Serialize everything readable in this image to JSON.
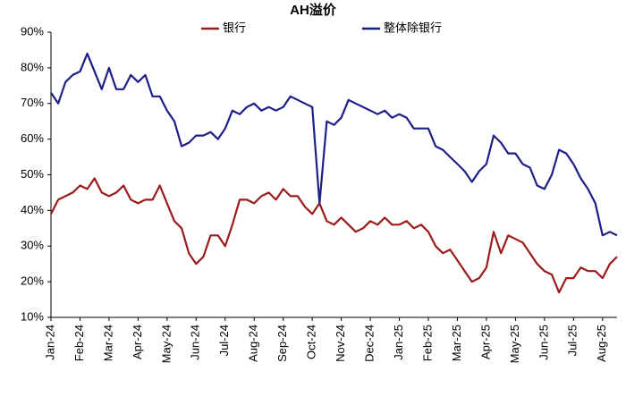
{
  "chart_data": {
    "type": "line",
    "title": "AH溢价",
    "categories": [
      "Jan-24",
      null,
      null,
      null,
      "Feb-24",
      null,
      null,
      null,
      "Mar-24",
      null,
      null,
      null,
      "Apr-24",
      null,
      null,
      null,
      "May-24",
      null,
      null,
      null,
      "Jun-24",
      null,
      null,
      null,
      "Jul-24",
      null,
      null,
      null,
      "Aug-24",
      null,
      null,
      null,
      "Sep-24",
      null,
      null,
      null,
      "Oct-24",
      null,
      null,
      null,
      "Nov-24",
      null,
      null,
      null,
      "Dec-24",
      null,
      null,
      null,
      "Jan-25",
      null,
      null,
      null,
      "Feb-25",
      null,
      null,
      null,
      "Mar-25",
      null,
      null,
      null,
      "Apr-25",
      null,
      null,
      null,
      "May-25",
      null,
      null,
      null,
      "Jun-25",
      null,
      null,
      null,
      "Jul-25",
      null,
      null,
      null,
      "Aug-25",
      null,
      null
    ],
    "series": [
      {
        "name": "银行",
        "color": "#9b1b1b",
        "values": [
          39,
          43,
          44,
          45,
          47,
          46,
          49,
          45,
          44,
          45,
          47,
          43,
          42,
          43,
          43,
          47,
          42,
          37,
          35,
          28,
          25,
          27,
          33,
          33,
          30,
          36,
          43,
          43,
          42,
          44,
          45,
          43,
          46,
          44,
          44,
          41,
          39,
          42,
          37,
          36,
          38,
          36,
          34,
          35,
          37,
          36,
          38,
          36,
          36,
          37,
          35,
          36,
          34,
          30,
          28,
          29,
          26,
          23,
          20,
          21,
          24,
          34,
          28,
          33,
          32,
          31,
          28,
          25,
          23,
          22,
          17,
          21,
          21,
          24,
          23,
          23,
          21,
          25,
          27
        ]
      },
      {
        "name": "整体除银行",
        "color": "#1c1f86",
        "values": [
          73,
          70,
          76,
          78,
          79,
          84,
          79,
          74,
          80,
          74,
          74,
          78,
          76,
          78,
          72,
          72,
          68,
          65,
          58,
          59,
          61,
          61,
          62,
          60,
          63,
          68,
          67,
          69,
          70,
          68,
          69,
          68,
          69,
          72,
          71,
          70,
          69,
          42,
          65,
          64,
          66,
          71,
          70,
          69,
          68,
          67,
          68,
          66,
          67,
          66,
          63,
          63,
          63,
          58,
          57,
          55,
          53,
          51,
          48,
          51,
          53,
          61,
          59,
          56,
          56,
          53,
          52,
          47,
          46,
          50,
          57,
          56,
          53,
          49,
          46,
          42,
          33,
          34,
          33
        ]
      }
    ],
    "ylim": [
      10,
      90
    ],
    "yticks": [
      {
        "value": 10,
        "label": "10%"
      },
      {
        "value": 20,
        "label": "20%"
      },
      {
        "value": 30,
        "label": "30%"
      },
      {
        "value": 40,
        "label": "40%"
      },
      {
        "value": 50,
        "label": "50%"
      },
      {
        "value": 60,
        "label": "60%"
      },
      {
        "value": 70,
        "label": "70%"
      },
      {
        "value": 80,
        "label": "80%"
      },
      {
        "value": 90,
        "label": "90%"
      }
    ],
    "grid": false,
    "legend": "top"
  }
}
